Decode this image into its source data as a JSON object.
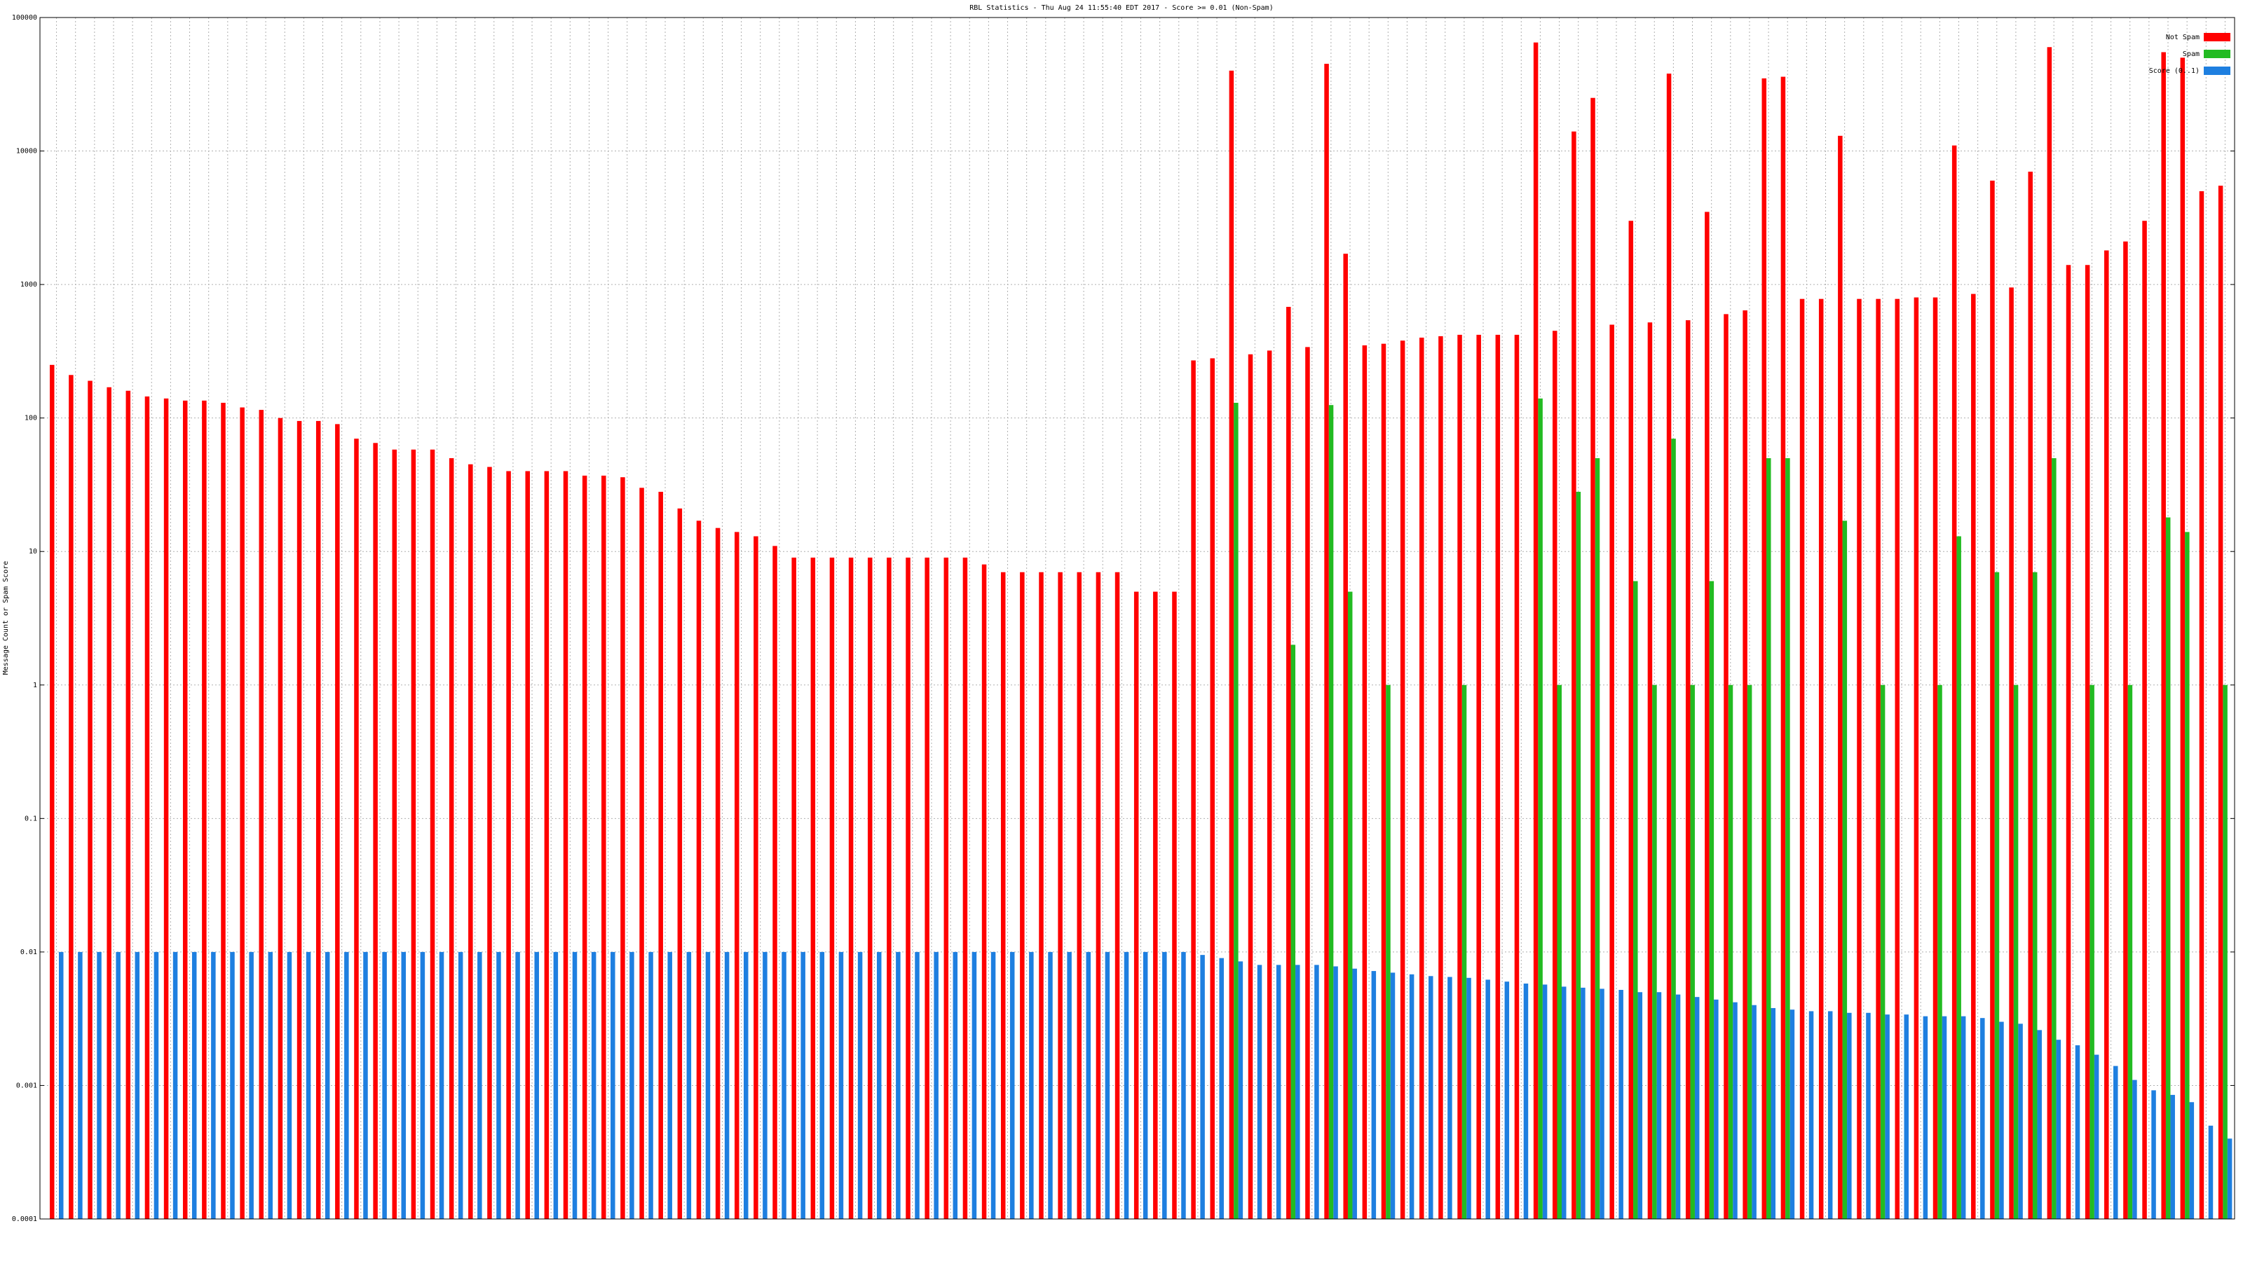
{
  "chart_data": {
    "type": "bar",
    "title": "RBL Statistics - Thu Aug 24 11:55:40 EDT 2017 - Score >= 0.01 (Non-Spam)",
    "y_label": "Message Count or Spam Score",
    "log_scale": true,
    "grid": true,
    "legend": "top-right",
    "ylim": [
      0.0001,
      100000
    ],
    "yticks": [
      0.0001,
      0.001,
      0.01,
      0.1,
      1,
      10,
      100,
      1000,
      10000,
      100000
    ],
    "categories": [
      null,
      null,
      null,
      null,
      null,
      null,
      null,
      null,
      null,
      null,
      null,
      null,
      null,
      null,
      null,
      null,
      null,
      null,
      null,
      null,
      null,
      null,
      null,
      null,
      null,
      null,
      null,
      null,
      null,
      null,
      null,
      null,
      null,
      null,
      null,
      null,
      null,
      null,
      null,
      null,
      null,
      null,
      null,
      null,
      null,
      null,
      null,
      null,
      null,
      null,
      null,
      null,
      null,
      null,
      null,
      null,
      null,
      null,
      null,
      null,
      null,
      null,
      null,
      null,
      null,
      null,
      null,
      null,
      null,
      null,
      null,
      null,
      null,
      null,
      null,
      null,
      null,
      null,
      null,
      null,
      null,
      null,
      null,
      null,
      null,
      null,
      null,
      null,
      null,
      null,
      null,
      null,
      null,
      null,
      null,
      null,
      null,
      null,
      null,
      null,
      null,
      null,
      null,
      null,
      null,
      null,
      null,
      null,
      null,
      null,
      null,
      null,
      null,
      null,
      null
    ],
    "series": [
      {
        "name": "Not Spam",
        "color": "#ff0000",
        "values": [
          250,
          210,
          190,
          170,
          160,
          145,
          140,
          135,
          135,
          130,
          120,
          115,
          100,
          95,
          95,
          90,
          70,
          65,
          58,
          58,
          58,
          50,
          45,
          43,
          40,
          40,
          40,
          40,
          37,
          37,
          36,
          30,
          28,
          21,
          17,
          15,
          14,
          13,
          11,
          9,
          9,
          9,
          9,
          9,
          9,
          9,
          9,
          9,
          9,
          8,
          7,
          7,
          7,
          7,
          7,
          7,
          7,
          5,
          5,
          5,
          270,
          280,
          40000,
          300,
          320,
          680,
          340,
          45000,
          1700,
          350,
          360,
          380,
          400,
          410,
          420,
          420,
          420,
          420,
          65000,
          450,
          14000,
          25000,
          500,
          3000,
          520,
          38000,
          540,
          3500,
          600,
          640,
          35000,
          36000,
          780,
          780,
          13000,
          780,
          780,
          780,
          800,
          800,
          11000,
          850,
          6000,
          950,
          7000,
          60000,
          1400,
          1400,
          1800,
          2100,
          3000,
          55000,
          50000,
          5000,
          5500
        ]
      },
      {
        "name": "Spam",
        "color": "#22bb22",
        "values": [
          null,
          null,
          null,
          null,
          null,
          null,
          null,
          null,
          null,
          null,
          null,
          null,
          null,
          null,
          null,
          null,
          null,
          null,
          null,
          null,
          null,
          null,
          null,
          null,
          null,
          null,
          null,
          null,
          null,
          null,
          null,
          null,
          null,
          null,
          null,
          null,
          null,
          null,
          null,
          null,
          null,
          null,
          null,
          null,
          null,
          null,
          null,
          null,
          null,
          null,
          null,
          null,
          null,
          null,
          null,
          null,
          null,
          null,
          null,
          null,
          null,
          null,
          130,
          null,
          null,
          2,
          null,
          125,
          5,
          null,
          1,
          null,
          null,
          null,
          1,
          null,
          null,
          null,
          140,
          1,
          28,
          50,
          null,
          6,
          1,
          70,
          1,
          6,
          1,
          1,
          50,
          50,
          null,
          null,
          17,
          null,
          1,
          null,
          null,
          1,
          13,
          null,
          7,
          1,
          7,
          50,
          null,
          1,
          null,
          1,
          null,
          18,
          14,
          null,
          1
        ]
      },
      {
        "name": "Score (0..1)",
        "color": "#1e7fe0",
        "values": [
          0.01,
          0.01,
          0.01,
          0.01,
          0.01,
          0.01,
          0.01,
          0.01,
          0.01,
          0.01,
          0.01,
          0.01,
          0.01,
          0.01,
          0.01,
          0.01,
          0.01,
          0.01,
          0.01,
          0.01,
          0.01,
          0.01,
          0.01,
          0.01,
          0.01,
          0.01,
          0.01,
          0.01,
          0.01,
          0.01,
          0.01,
          0.01,
          0.01,
          0.01,
          0.01,
          0.01,
          0.01,
          0.01,
          0.01,
          0.01,
          0.01,
          0.01,
          0.01,
          0.01,
          0.01,
          0.01,
          0.01,
          0.01,
          0.01,
          0.01,
          0.01,
          0.01,
          0.01,
          0.01,
          0.01,
          0.01,
          0.01,
          0.01,
          0.01,
          0.01,
          0.0095,
          0.009,
          0.0085,
          0.008,
          0.008,
          0.008,
          0.008,
          0.0078,
          0.0075,
          0.0072,
          0.007,
          0.0068,
          0.0066,
          0.0065,
          0.0064,
          0.0062,
          0.006,
          0.0058,
          0.0057,
          0.0055,
          0.0054,
          0.0053,
          0.0052,
          0.005,
          0.005,
          0.0048,
          0.0046,
          0.0044,
          0.0042,
          0.004,
          0.0038,
          0.0037,
          0.0036,
          0.0036,
          0.0035,
          0.0035,
          0.0034,
          0.0034,
          0.0033,
          0.0033,
          0.0033,
          0.0032,
          0.003,
          0.0029,
          0.0026,
          0.0022,
          0.002,
          0.0017,
          0.0014,
          0.0011,
          0.00092,
          0.00085,
          0.00075,
          0.0005,
          0.0004
        ]
      }
    ]
  }
}
